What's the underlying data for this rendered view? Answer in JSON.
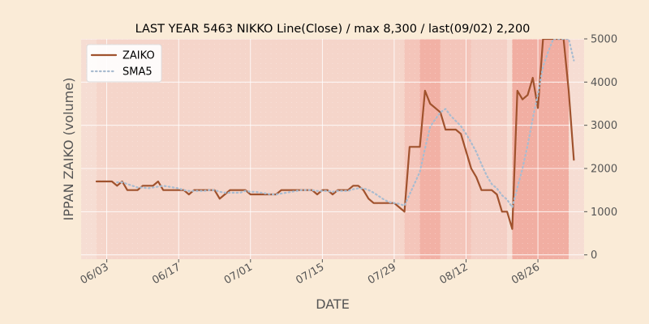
{
  "chart_data": {
    "type": "line",
    "title": "LAST YEAR 5463 NIKKO Line(Close) / max 8,300 / last(09/02) 2,200",
    "xlabel": "DATE",
    "ylabel": "IPPAN ZAIKO (volume)",
    "ylim": [
      -100,
      5000
    ],
    "yticks": [
      0,
      1000,
      2000,
      3000,
      4000,
      5000
    ],
    "y_axis_side": "right",
    "x_range": [
      "2023-05-29",
      "2023-09-04"
    ],
    "xticks": [
      {
        "date": "2023-06-03",
        "label": "06/03"
      },
      {
        "date": "2023-06-17",
        "label": "06/17"
      },
      {
        "date": "2023-07-01",
        "label": "07/01"
      },
      {
        "date": "2023-07-15",
        "label": "07/15"
      },
      {
        "date": "2023-07-29",
        "label": "07/29"
      },
      {
        "date": "2023-08-12",
        "label": "08/12"
      },
      {
        "date": "2023-08-26",
        "label": "08/26"
      }
    ],
    "legend_position": "top-left",
    "grid": true,
    "colors": {
      "zaiko": "#a0522d",
      "sma5": "#a9bcd0",
      "plot_bg": "#f6ddd3",
      "band_light": "#f7cfc4",
      "band_dark": "#f1a99c",
      "page_bg": "#faebd7"
    },
    "shaded_bands": [
      {
        "start": "2023-06-01",
        "end": "2023-07-31",
        "intensity": 0.15
      },
      {
        "start": "2023-07-31",
        "end": "2023-08-03",
        "intensity": 0.45
      },
      {
        "start": "2023-08-03",
        "end": "2023-08-07",
        "intensity": 0.85
      },
      {
        "start": "2023-08-07",
        "end": "2023-08-13",
        "intensity": 0.45
      },
      {
        "start": "2023-08-13",
        "end": "2023-08-20",
        "intensity": 0.25
      },
      {
        "start": "2023-08-21",
        "end": "2023-09-01",
        "intensity": 0.9
      }
    ],
    "series": [
      {
        "name": "ZAIKO",
        "style": "solid",
        "points": [
          [
            "2023-06-01",
            1700
          ],
          [
            "2023-06-02",
            1700
          ],
          [
            "2023-06-03",
            1700
          ],
          [
            "2023-06-04",
            1700
          ],
          [
            "2023-06-05",
            1600
          ],
          [
            "2023-06-06",
            1700
          ],
          [
            "2023-06-07",
            1500
          ],
          [
            "2023-06-08",
            1500
          ],
          [
            "2023-06-09",
            1500
          ],
          [
            "2023-06-10",
            1600
          ],
          [
            "2023-06-11",
            1600
          ],
          [
            "2023-06-12",
            1600
          ],
          [
            "2023-06-13",
            1700
          ],
          [
            "2023-06-14",
            1500
          ],
          [
            "2023-06-15",
            1500
          ],
          [
            "2023-06-16",
            1500
          ],
          [
            "2023-06-17",
            1500
          ],
          [
            "2023-06-18",
            1500
          ],
          [
            "2023-06-19",
            1400
          ],
          [
            "2023-06-20",
            1500
          ],
          [
            "2023-06-21",
            1500
          ],
          [
            "2023-06-22",
            1500
          ],
          [
            "2023-06-23",
            1500
          ],
          [
            "2023-06-24",
            1500
          ],
          [
            "2023-06-25",
            1300
          ],
          [
            "2023-06-26",
            1400
          ],
          [
            "2023-06-27",
            1500
          ],
          [
            "2023-06-28",
            1500
          ],
          [
            "2023-06-29",
            1500
          ],
          [
            "2023-06-30",
            1500
          ],
          [
            "2023-07-01",
            1400
          ],
          [
            "2023-07-02",
            1400
          ],
          [
            "2023-07-03",
            1400
          ],
          [
            "2023-07-04",
            1400
          ],
          [
            "2023-07-05",
            1400
          ],
          [
            "2023-07-06",
            1400
          ],
          [
            "2023-07-07",
            1500
          ],
          [
            "2023-07-08",
            1500
          ],
          [
            "2023-07-09",
            1500
          ],
          [
            "2023-07-10",
            1500
          ],
          [
            "2023-07-11",
            1500
          ],
          [
            "2023-07-12",
            1500
          ],
          [
            "2023-07-13",
            1500
          ],
          [
            "2023-07-14",
            1400
          ],
          [
            "2023-07-15",
            1500
          ],
          [
            "2023-07-16",
            1500
          ],
          [
            "2023-07-17",
            1400
          ],
          [
            "2023-07-18",
            1500
          ],
          [
            "2023-07-19",
            1500
          ],
          [
            "2023-07-20",
            1500
          ],
          [
            "2023-07-21",
            1600
          ],
          [
            "2023-07-22",
            1600
          ],
          [
            "2023-07-23",
            1500
          ],
          [
            "2023-07-24",
            1300
          ],
          [
            "2023-07-25",
            1200
          ],
          [
            "2023-07-26",
            1200
          ],
          [
            "2023-07-27",
            1200
          ],
          [
            "2023-07-28",
            1200
          ],
          [
            "2023-07-29",
            1200
          ],
          [
            "2023-07-30",
            1100
          ],
          [
            "2023-07-31",
            1000
          ],
          [
            "2023-08-01",
            2500
          ],
          [
            "2023-08-02",
            2500
          ],
          [
            "2023-08-03",
            2500
          ],
          [
            "2023-08-04",
            3800
          ],
          [
            "2023-08-05",
            3500
          ],
          [
            "2023-08-06",
            3400
          ],
          [
            "2023-08-07",
            3300
          ],
          [
            "2023-08-08",
            2900
          ],
          [
            "2023-08-09",
            2900
          ],
          [
            "2023-08-10",
            2900
          ],
          [
            "2023-08-11",
            2800
          ],
          [
            "2023-08-12",
            2400
          ],
          [
            "2023-08-13",
            2000
          ],
          [
            "2023-08-14",
            1800
          ],
          [
            "2023-08-15",
            1500
          ],
          [
            "2023-08-16",
            1500
          ],
          [
            "2023-08-17",
            1500
          ],
          [
            "2023-08-18",
            1400
          ],
          [
            "2023-08-19",
            1000
          ],
          [
            "2023-08-20",
            1000
          ],
          [
            "2023-08-21",
            600
          ],
          [
            "2023-08-22",
            3800
          ],
          [
            "2023-08-23",
            3600
          ],
          [
            "2023-08-24",
            3700
          ],
          [
            "2023-08-25",
            4100
          ],
          [
            "2023-08-26",
            3400
          ],
          [
            "2023-08-27",
            5000
          ],
          [
            "2023-08-31",
            5000
          ],
          [
            "2023-09-01",
            3800
          ],
          [
            "2023-09-02",
            2200
          ]
        ]
      },
      {
        "name": "SMA5",
        "style": "dotted",
        "points": [
          [
            "2023-06-05",
            1680
          ],
          [
            "2023-06-06",
            1680
          ],
          [
            "2023-06-07",
            1640
          ],
          [
            "2023-06-08",
            1600
          ],
          [
            "2023-06-09",
            1560
          ],
          [
            "2023-06-10",
            1560
          ],
          [
            "2023-06-11",
            1540
          ],
          [
            "2023-06-12",
            1560
          ],
          [
            "2023-06-13",
            1580
          ],
          [
            "2023-06-14",
            1600
          ],
          [
            "2023-06-15",
            1580
          ],
          [
            "2023-06-16",
            1560
          ],
          [
            "2023-06-17",
            1540
          ],
          [
            "2023-06-18",
            1500
          ],
          [
            "2023-06-19",
            1480
          ],
          [
            "2023-06-20",
            1480
          ],
          [
            "2023-06-21",
            1480
          ],
          [
            "2023-06-22",
            1480
          ],
          [
            "2023-06-23",
            1500
          ],
          [
            "2023-06-24",
            1500
          ],
          [
            "2023-06-25",
            1460
          ],
          [
            "2023-06-26",
            1440
          ],
          [
            "2023-06-27",
            1440
          ],
          [
            "2023-06-28",
            1440
          ],
          [
            "2023-06-29",
            1440
          ],
          [
            "2023-06-30",
            1480
          ],
          [
            "2023-07-01",
            1460
          ],
          [
            "2023-07-02",
            1460
          ],
          [
            "2023-07-03",
            1440
          ],
          [
            "2023-07-04",
            1420
          ],
          [
            "2023-07-05",
            1400
          ],
          [
            "2023-07-06",
            1400
          ],
          [
            "2023-07-07",
            1420
          ],
          [
            "2023-07-08",
            1440
          ],
          [
            "2023-07-09",
            1460
          ],
          [
            "2023-07-10",
            1480
          ],
          [
            "2023-07-11",
            1500
          ],
          [
            "2023-07-12",
            1500
          ],
          [
            "2023-07-13",
            1500
          ],
          [
            "2023-07-14",
            1480
          ],
          [
            "2023-07-15",
            1480
          ],
          [
            "2023-07-16",
            1480
          ],
          [
            "2023-07-17",
            1460
          ],
          [
            "2023-07-18",
            1480
          ],
          [
            "2023-07-19",
            1480
          ],
          [
            "2023-07-20",
            1480
          ],
          [
            "2023-07-21",
            1520
          ],
          [
            "2023-07-22",
            1540
          ],
          [
            "2023-07-23",
            1540
          ],
          [
            "2023-07-24",
            1500
          ],
          [
            "2023-07-25",
            1440
          ],
          [
            "2023-07-26",
            1360
          ],
          [
            "2023-07-27",
            1280
          ],
          [
            "2023-07-28",
            1220
          ],
          [
            "2023-07-29",
            1200
          ],
          [
            "2023-07-30",
            1180
          ],
          [
            "2023-07-31",
            1140
          ],
          [
            "2023-08-01",
            1400
          ],
          [
            "2023-08-02",
            1660
          ],
          [
            "2023-08-03",
            1920
          ],
          [
            "2023-08-04",
            2460
          ],
          [
            "2023-08-05",
            2960
          ],
          [
            "2023-08-06",
            3140
          ],
          [
            "2023-08-07",
            3300
          ],
          [
            "2023-08-08",
            3380
          ],
          [
            "2023-08-09",
            3220
          ],
          [
            "2023-08-10",
            3100
          ],
          [
            "2023-08-11",
            2980
          ],
          [
            "2023-08-12",
            2800
          ],
          [
            "2023-08-13",
            2600
          ],
          [
            "2023-08-14",
            2380
          ],
          [
            "2023-08-15",
            2100
          ],
          [
            "2023-08-16",
            1840
          ],
          [
            "2023-08-17",
            1640
          ],
          [
            "2023-08-18",
            1540
          ],
          [
            "2023-08-19",
            1380
          ],
          [
            "2023-08-20",
            1280
          ],
          [
            "2023-08-21",
            1100
          ],
          [
            "2023-08-22",
            1560
          ],
          [
            "2023-08-23",
            2000
          ],
          [
            "2023-08-24",
            2540
          ],
          [
            "2023-08-25",
            3160
          ],
          [
            "2023-08-26",
            3720
          ],
          [
            "2023-08-27",
            4360
          ],
          [
            "2023-08-28",
            4700
          ],
          [
            "2023-08-29",
            5000
          ],
          [
            "2023-08-31",
            5000
          ],
          [
            "2023-09-01",
            5000
          ],
          [
            "2023-09-02",
            4500
          ]
        ]
      }
    ]
  }
}
